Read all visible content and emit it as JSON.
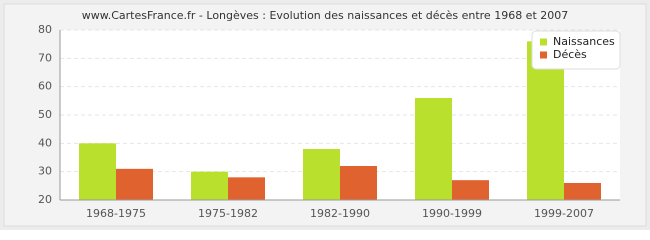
{
  "chart_data": {
    "type": "bar",
    "title": "www.CartesFrance.fr - Longèves : Evolution des naissances et décès entre 1968 et 2007",
    "categories": [
      "1968-1975",
      "1975-1982",
      "1982-1990",
      "1990-1999",
      "1999-2007"
    ],
    "series": [
      {
        "name": "Naissances",
        "color": "#b9e02c",
        "values": [
          40,
          30,
          38,
          56,
          76
        ]
      },
      {
        "name": "Décès",
        "color": "#e0632f",
        "values": [
          31,
          28,
          32,
          27,
          26
        ]
      }
    ],
    "ylim": [
      20,
      80
    ],
    "yticks": [
      20,
      30,
      40,
      50,
      60,
      70,
      80
    ],
    "grid": true,
    "legend": "upper right"
  }
}
